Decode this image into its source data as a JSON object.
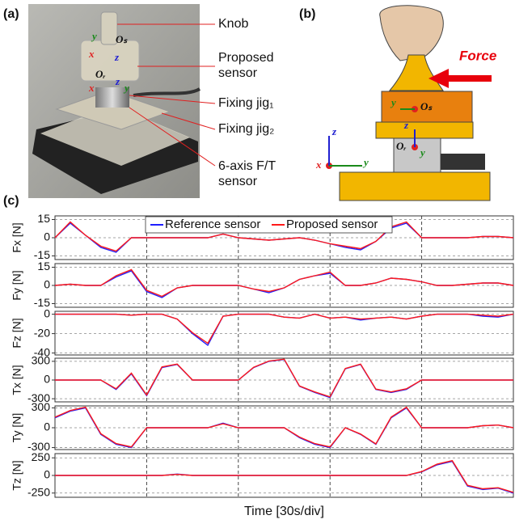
{
  "panel_a": {
    "label": "(a)",
    "callouts": [
      [
        "Knob"
      ],
      [
        "Proposed",
        "sensor"
      ],
      [
        "Fixing jig₁"
      ],
      [
        "Fixing jig₂"
      ],
      [
        "6-axis F/T",
        "sensor"
      ]
    ],
    "frame_labels": [
      "y",
      "Oₛ",
      "x",
      "z",
      "Oᵣ",
      "x",
      "z",
      "y"
    ]
  },
  "panel_b": {
    "label": "(b)",
    "force": "Force",
    "frame_labels": [
      "y",
      "Oₛ",
      "z",
      "Oᵣ",
      "y",
      "z",
      "x",
      "y"
    ]
  },
  "chart_data": [
    {
      "type": "line",
      "panel_label": "(c)",
      "ylabel": "Fx [N]",
      "legend": true,
      "x": [
        0,
        5,
        10,
        15,
        20,
        25,
        30,
        35,
        40,
        45,
        50,
        55,
        60,
        65,
        70,
        75,
        80,
        85,
        90,
        95,
        100,
        105,
        110,
        115,
        120,
        125,
        130,
        135,
        140,
        145,
        150
      ],
      "xlim": [
        0,
        150
      ],
      "xticks": [
        30,
        60,
        90,
        120
      ],
      "ylim": [
        -18,
        18
      ],
      "yticks": [
        15,
        0,
        -15
      ],
      "series": [
        {
          "name": "Reference sensor",
          "color": "#1f1fff",
          "values": [
            0,
            12,
            2,
            -8,
            -12,
            0,
            0,
            0,
            0,
            0,
            0,
            3,
            0,
            -1,
            -2,
            -1,
            0,
            -2,
            -5,
            -8,
            -10,
            -3,
            8,
            12,
            0,
            0,
            0,
            0,
            1,
            1,
            0
          ]
        },
        {
          "name": "Proposed sensor",
          "color": "#ff1a1a",
          "values": [
            0,
            13,
            2,
            -7,
            -11,
            0,
            0,
            0,
            0,
            0,
            0,
            3,
            0,
            -1,
            -2,
            -1,
            0,
            -2,
            -5,
            -7,
            -9,
            -3,
            9,
            13,
            0,
            0,
            0,
            0,
            1,
            1,
            0
          ]
        }
      ]
    },
    {
      "type": "line",
      "ylabel": "Fy [N]",
      "x": [
        0,
        5,
        10,
        15,
        20,
        25,
        30,
        35,
        40,
        45,
        50,
        55,
        60,
        65,
        70,
        75,
        80,
        85,
        90,
        95,
        100,
        105,
        110,
        115,
        120,
        125,
        130,
        135,
        140,
        145,
        150
      ],
      "xlim": [
        0,
        150
      ],
      "xticks": [
        30,
        60,
        90,
        120
      ],
      "ylim": [
        -18,
        18
      ],
      "yticks": [
        15,
        0,
        -15
      ],
      "series": [
        {
          "color": "#1f1fff",
          "values": [
            0,
            1,
            0,
            0,
            7,
            12,
            -5,
            -10,
            -2,
            0,
            0,
            0,
            0,
            -3,
            -6,
            -2,
            5,
            8,
            10,
            0,
            0,
            2,
            6,
            5,
            3,
            0,
            0,
            1,
            2,
            2,
            0
          ]
        },
        {
          "color": "#ff1a1a",
          "values": [
            0,
            1,
            0,
            0,
            8,
            13,
            -4,
            -9,
            -2,
            0,
            0,
            0,
            0,
            -3,
            -5,
            -2,
            5,
            8,
            11,
            0,
            0,
            2,
            6,
            5,
            3,
            0,
            0,
            1,
            2,
            2,
            0
          ]
        }
      ]
    },
    {
      "type": "line",
      "ylabel": "Fz [N]",
      "x": [
        0,
        5,
        10,
        15,
        20,
        25,
        30,
        35,
        40,
        45,
        50,
        55,
        60,
        65,
        70,
        75,
        80,
        85,
        90,
        95,
        100,
        105,
        110,
        115,
        120,
        125,
        130,
        135,
        140,
        145,
        150
      ],
      "xlim": [
        0,
        150
      ],
      "xticks": [
        30,
        60,
        90,
        120
      ],
      "ylim": [
        -42,
        3
      ],
      "yticks": [
        0,
        -20,
        -40
      ],
      "series": [
        {
          "color": "#1f1fff",
          "values": [
            0,
            0,
            0,
            0,
            0,
            -1,
            0,
            0,
            -5,
            -20,
            -32,
            -2,
            0,
            0,
            0,
            -3,
            -4,
            0,
            -4,
            -3,
            -6,
            -4,
            -3,
            -5,
            -2,
            0,
            0,
            0,
            -2,
            -3,
            0
          ]
        },
        {
          "color": "#ff1a1a",
          "values": [
            0,
            0,
            0,
            0,
            0,
            -1,
            0,
            0,
            -5,
            -19,
            -30,
            -2,
            0,
            0,
            0,
            -3,
            -4,
            0,
            -4,
            -3,
            -5,
            -4,
            -3,
            -5,
            -2,
            0,
            0,
            0,
            -1,
            -2,
            0
          ]
        }
      ]
    },
    {
      "type": "line",
      "ylabel": "Tx [N]",
      "x": [
        0,
        5,
        10,
        15,
        20,
        25,
        30,
        35,
        40,
        45,
        50,
        55,
        60,
        65,
        70,
        75,
        80,
        85,
        90,
        95,
        100,
        105,
        110,
        115,
        120,
        125,
        130,
        135,
        140,
        145,
        150
      ],
      "xlim": [
        0,
        150
      ],
      "xticks": [
        30,
        60,
        90,
        120
      ],
      "ylim": [
        -350,
        350
      ],
      "yticks": [
        300,
        0,
        -300
      ],
      "series": [
        {
          "color": "#1f1fff",
          "values": [
            0,
            0,
            0,
            0,
            -150,
            100,
            -250,
            200,
            250,
            0,
            0,
            0,
            0,
            200,
            300,
            330,
            -100,
            -200,
            -280,
            180,
            250,
            -150,
            -200,
            -150,
            0,
            0,
            0,
            0,
            0,
            0,
            0
          ]
        },
        {
          "color": "#ff1a1a",
          "values": [
            0,
            0,
            0,
            0,
            -140,
            110,
            -240,
            210,
            255,
            0,
            0,
            0,
            0,
            205,
            305,
            335,
            -95,
            -190,
            -270,
            185,
            255,
            -145,
            -190,
            -140,
            0,
            0,
            0,
            0,
            0,
            0,
            0
          ]
        }
      ]
    },
    {
      "type": "line",
      "ylabel": "Ty [N]",
      "x": [
        0,
        5,
        10,
        15,
        20,
        25,
        30,
        35,
        40,
        45,
        50,
        55,
        60,
        65,
        70,
        75,
        80,
        85,
        90,
        95,
        100,
        105,
        110,
        115,
        120,
        125,
        130,
        135,
        140,
        145,
        150
      ],
      "xlim": [
        0,
        150
      ],
      "xticks": [
        30,
        60,
        90,
        120
      ],
      "ylim": [
        -330,
        330
      ],
      "yticks": [
        300,
        0,
        -300
      ],
      "series": [
        {
          "color": "#1f1fff",
          "values": [
            150,
            250,
            300,
            -100,
            -250,
            -300,
            0,
            0,
            0,
            0,
            0,
            70,
            0,
            0,
            0,
            0,
            -150,
            -250,
            -300,
            0,
            -100,
            -250,
            150,
            300,
            0,
            0,
            0,
            0,
            30,
            40,
            0
          ]
        },
        {
          "color": "#ff1a1a",
          "values": [
            160,
            260,
            310,
            -90,
            -240,
            -290,
            0,
            0,
            0,
            0,
            0,
            60,
            0,
            0,
            0,
            0,
            -140,
            -240,
            -290,
            0,
            -95,
            -245,
            160,
            310,
            0,
            0,
            0,
            0,
            30,
            40,
            0
          ]
        }
      ]
    },
    {
      "type": "line",
      "ylabel": "Tz [N]",
      "xlabel": "Time [30s/div]",
      "x": [
        0,
        5,
        10,
        15,
        20,
        25,
        30,
        35,
        40,
        45,
        50,
        55,
        60,
        65,
        70,
        75,
        80,
        85,
        90,
        95,
        100,
        105,
        110,
        115,
        120,
        125,
        130,
        135,
        140,
        145,
        150
      ],
      "xlim": [
        0,
        150
      ],
      "xticks": [
        30,
        60,
        90,
        120
      ],
      "ylim": [
        -310,
        310
      ],
      "yticks": [
        250,
        0,
        -250
      ],
      "series": [
        {
          "color": "#1f1fff",
          "values": [
            0,
            0,
            0,
            0,
            0,
            0,
            0,
            0,
            20,
            0,
            0,
            0,
            0,
            0,
            0,
            0,
            0,
            0,
            0,
            0,
            0,
            0,
            0,
            0,
            50,
            150,
            200,
            -150,
            -200,
            -180,
            -250
          ]
        },
        {
          "color": "#ff1a1a",
          "values": [
            0,
            0,
            0,
            0,
            0,
            0,
            0,
            0,
            15,
            0,
            0,
            0,
            0,
            0,
            0,
            0,
            0,
            0,
            0,
            0,
            0,
            0,
            0,
            0,
            55,
            160,
            210,
            -140,
            -190,
            -175,
            -240
          ]
        }
      ]
    }
  ]
}
